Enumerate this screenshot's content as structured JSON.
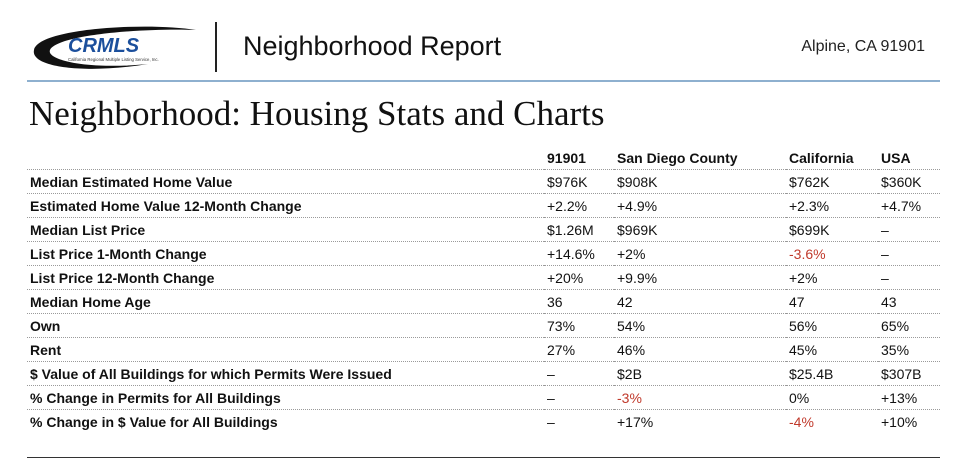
{
  "header": {
    "logo_text": "CRMLS",
    "logo_tagline": "California Regional Multiple Listing Service, Inc.",
    "report_title": "Neighborhood Report",
    "location": "Alpine, CA 91901"
  },
  "section": {
    "title": "Neighborhood: Housing Stats and Charts"
  },
  "table": {
    "columns": [
      "",
      "91901",
      "San Diego County",
      "California",
      "USA"
    ],
    "rows": [
      {
        "metric": "Median Estimated Home Value",
        "values": [
          "$976K",
          "$908K",
          "$762K",
          "$360K"
        ]
      },
      {
        "metric": "Estimated Home Value 12-Month Change",
        "values": [
          "+2.2%",
          "+4.9%",
          "+2.3%",
          "+4.7%"
        ]
      },
      {
        "metric": "Median List Price",
        "values": [
          "$1.26M",
          "$969K",
          "$699K",
          "–"
        ]
      },
      {
        "metric": "List Price 1-Month Change",
        "values": [
          "+14.6%",
          "+2%",
          "-3.6%",
          "–"
        ]
      },
      {
        "metric": "List Price 12-Month Change",
        "values": [
          "+20%",
          "+9.9%",
          "+2%",
          "–"
        ]
      },
      {
        "metric": "Median Home Age",
        "values": [
          "36",
          "42",
          "47",
          "43"
        ]
      },
      {
        "metric": "Own",
        "values": [
          "73%",
          "54%",
          "56%",
          "65%"
        ]
      },
      {
        "metric": "Rent",
        "values": [
          "27%",
          "46%",
          "45%",
          "35%"
        ]
      },
      {
        "metric": "$ Value of All Buildings for which Permits Were Issued",
        "values": [
          "–",
          "$2B",
          "$25.4B",
          "$307B"
        ]
      },
      {
        "metric": "% Change in Permits for All Buildings",
        "values": [
          "–",
          "-3%",
          "0%",
          "+13%"
        ]
      },
      {
        "metric": "% Change in $ Value for All Buildings",
        "values": [
          "–",
          "+17%",
          "-4%",
          "+10%"
        ]
      }
    ]
  },
  "colors": {
    "negative": "#c0392b",
    "accent_rule": "#8eb0cf",
    "logo_blue": "#1b4f9c"
  }
}
